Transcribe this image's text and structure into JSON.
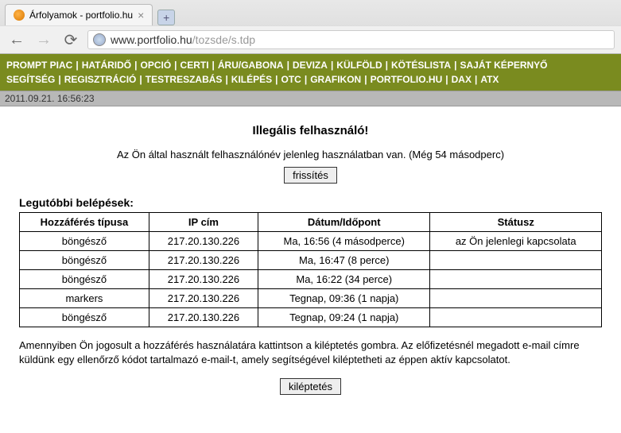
{
  "browser": {
    "tab_title": "Árfolyamok - portfolio.hu",
    "url_host": "www.portfolio.hu",
    "url_path": "/tozsde/s.tdp"
  },
  "nav": {
    "row1": [
      "PROMPT PIAC",
      "HATÁRIDŐ",
      "OPCIÓ",
      "CERTI",
      "ÁRU/GABONA",
      "DEVIZA",
      "KÜLFÖLD",
      "KÖTÉSLISTA",
      "SAJÁT KÉPERNYŐ"
    ],
    "row2": [
      "SEGÍTSÉG",
      "REGISZTRÁCIÓ",
      "TESTRESZABÁS",
      "KILÉPÉS",
      "OTC",
      "GRAFIKON",
      "PORTFOLIO.HU",
      "DAX",
      "ATX"
    ]
  },
  "timestamp": "2011.09.21. 16:56:23",
  "page": {
    "warning_title": "Illegális felhasználó!",
    "warning_text": "Az Ön által használt felhasználónév jelenleg használatban van. (Még 54 másodperc)",
    "refresh_label": "frissítés",
    "section_title": "Legutóbbi belépések:",
    "footer_text": "Amennyiben Ön jogosult a hozzáférés használatára kattintson a kiléptetés gombra. Az előfizetésnél megadott e-mail címre küldünk egy ellenőrző kódot tartalmazó e-mail-t, amely segítségével kiléptetheti az éppen aktív kapcsolatot.",
    "logout_label": "kiléptetés"
  },
  "table": {
    "headers": [
      "Hozzáférés típusa",
      "IP cím",
      "Dátum/Időpont",
      "Státusz"
    ],
    "rows": [
      [
        "böngésző",
        "217.20.130.226",
        "Ma, 16:56 (4 másodperce)",
        "az Ön jelenlegi kapcsolata"
      ],
      [
        "böngésző",
        "217.20.130.226",
        "Ma, 16:47 (8 perce)",
        ""
      ],
      [
        "böngésző",
        "217.20.130.226",
        "Ma, 16:22 (34 perce)",
        ""
      ],
      [
        "markers",
        "217.20.130.226",
        "Tegnap, 09:36 (1 napja)",
        ""
      ],
      [
        "böngésző",
        "217.20.130.226",
        "Tegnap, 09:24 (1 napja)",
        ""
      ]
    ]
  }
}
